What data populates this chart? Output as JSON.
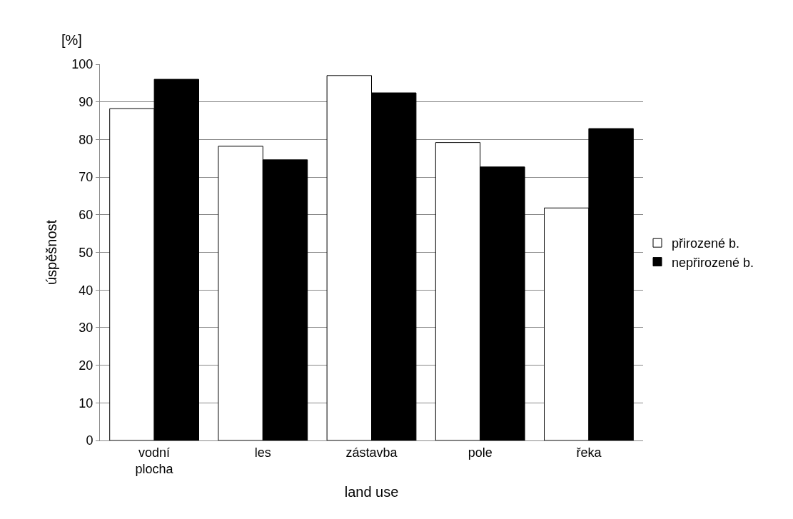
{
  "chart_data": {
    "type": "bar",
    "xlabel": "land use",
    "ylabel": "úspěšnost",
    "annotations": [
      "[%]"
    ],
    "categories": [
      "vodní\nplocha",
      "les",
      "zástavba",
      "pole",
      "řeka"
    ],
    "series": [
      {
        "name": "přirozené b.",
        "color": "#ffffff",
        "values": [
          88.2,
          78.2,
          97,
          79.2,
          61.8
        ]
      },
      {
        "name": "nepřirozené b.",
        "color": "#000000",
        "values": [
          96,
          74.6,
          92.4,
          72.7,
          82.9
        ]
      }
    ],
    "ylim": [
      0,
      100
    ],
    "yticks": [
      0,
      10,
      20,
      30,
      40,
      50,
      60,
      70,
      80,
      90,
      100
    ],
    "grid": "y",
    "legend": "right"
  }
}
